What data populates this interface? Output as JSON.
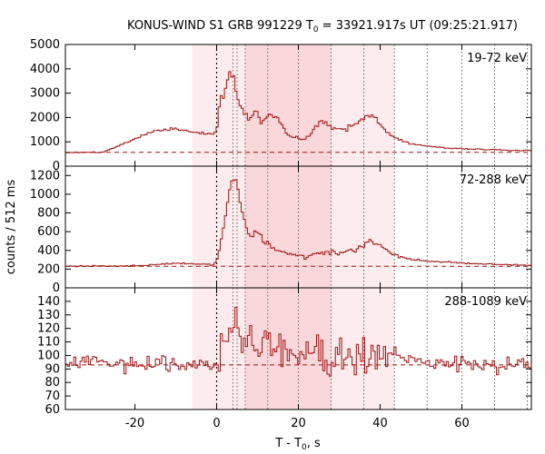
{
  "chart_data": {
    "type": "line",
    "title_main": "KONUS-WIND S1 GRB 991229 T",
    "title_sub": "0",
    "title_rest": " = 33921.917s UT (09:25:21.917)",
    "xlabel_main": "T - T",
    "xlabel_sub": "0",
    "xlabel_rest": ", s",
    "ylabel": "counts / 512 ms",
    "xlim": [
      -37,
      77
    ],
    "x_ticks": [
      -20,
      0,
      20,
      40,
      60
    ],
    "shaded_intervals": [
      {
        "from": -6,
        "to": 43.5,
        "level": 1
      },
      {
        "from": 7,
        "to": 28,
        "level": 2
      }
    ],
    "vertical_markers": [
      0,
      4,
      5,
      7,
      12.5,
      20,
      28,
      36,
      43.5,
      51.5,
      60,
      68,
      76
    ],
    "line_color": "#a01010",
    "bin_width": 0.512,
    "panels": [
      {
        "band": "19-72 keV",
        "ylim": [
          0,
          5000
        ],
        "y_ticks": [
          0,
          1000,
          2000,
          3000,
          4000,
          5000
        ],
        "background": 570,
        "profile": [
          [
            -37,
            560
          ],
          [
            -28,
            570
          ],
          [
            -23,
            900
          ],
          [
            -19,
            1200
          ],
          [
            -15,
            1450
          ],
          [
            -10,
            1550
          ],
          [
            -6,
            1400
          ],
          [
            -0.6,
            1300
          ],
          [
            0,
            1500
          ],
          [
            0.6,
            2400
          ],
          [
            1.5,
            2900
          ],
          [
            2.5,
            3200
          ],
          [
            3.5,
            4150
          ],
          [
            4.3,
            3600
          ],
          [
            5,
            2900
          ],
          [
            5.7,
            2500
          ],
          [
            6.5,
            2300
          ],
          [
            8,
            1900
          ],
          [
            9.5,
            2300
          ],
          [
            11,
            1750
          ],
          [
            13,
            2150
          ],
          [
            14.5,
            2000
          ],
          [
            16,
            1650
          ],
          [
            17.5,
            1300
          ],
          [
            19,
            1150
          ],
          [
            21,
            1100
          ],
          [
            23,
            1300
          ],
          [
            24.5,
            1700
          ],
          [
            26,
            1850
          ],
          [
            27.5,
            1650
          ],
          [
            29,
            1500
          ],
          [
            31,
            1550
          ],
          [
            33,
            1650
          ],
          [
            35,
            1800
          ],
          [
            36.5,
            2150
          ],
          [
            38,
            2050
          ],
          [
            40,
            1750
          ],
          [
            41.5,
            1450
          ],
          [
            43,
            1200
          ],
          [
            45,
            1050
          ],
          [
            48,
            900
          ],
          [
            52,
            820
          ],
          [
            56,
            750
          ],
          [
            62,
            700
          ],
          [
            68,
            680
          ],
          [
            72,
            650
          ],
          [
            77,
            640
          ]
        ]
      },
      {
        "band": "72-288 keV",
        "ylim": [
          0,
          1300
        ],
        "y_ticks": [
          0,
          200,
          400,
          600,
          800,
          1000,
          1200
        ],
        "background": 230,
        "profile": [
          [
            -37,
            230
          ],
          [
            -20,
            235
          ],
          [
            -15,
            250
          ],
          [
            -10,
            265
          ],
          [
            -6,
            255
          ],
          [
            -0.6,
            250
          ],
          [
            0,
            280
          ],
          [
            0.6,
            420
          ],
          [
            1.5,
            600
          ],
          [
            2.5,
            850
          ],
          [
            3.3,
            1050
          ],
          [
            4,
            1200
          ],
          [
            4.8,
            1150
          ],
          [
            5.5,
            1000
          ],
          [
            6.3,
            800
          ],
          [
            7,
            650
          ],
          [
            8,
            560
          ],
          [
            9.5,
            600
          ],
          [
            11,
            540
          ],
          [
            12.5,
            480
          ],
          [
            14,
            420
          ],
          [
            16,
            380
          ],
          [
            18,
            370
          ],
          [
            20,
            345
          ],
          [
            22,
            330
          ],
          [
            24,
            360
          ],
          [
            26,
            370
          ],
          [
            28,
            380
          ],
          [
            30,
            370
          ],
          [
            32,
            390
          ],
          [
            34,
            420
          ],
          [
            36,
            450
          ],
          [
            37.5,
            510
          ],
          [
            39,
            480
          ],
          [
            41,
            420
          ],
          [
            43,
            360
          ],
          [
            45,
            330
          ],
          [
            48,
            300
          ],
          [
            52,
            285
          ],
          [
            58,
            270
          ],
          [
            65,
            255
          ],
          [
            72,
            245
          ],
          [
            77,
            240
          ]
        ]
      },
      {
        "band": "288-1089 keV",
        "ylim": [
          60,
          150
        ],
        "y_ticks": [
          60,
          70,
          80,
          90,
          100,
          110,
          120,
          130,
          140
        ],
        "background": 93,
        "profile": [
          [
            -37,
            95
          ],
          [
            -34,
            94
          ],
          [
            -30,
            96
          ],
          [
            -25,
            94
          ],
          [
            -20,
            92
          ],
          [
            -15,
            93
          ],
          [
            -10,
            93
          ],
          [
            -6,
            92
          ],
          [
            -0.6,
            92
          ],
          [
            0,
            96
          ],
          [
            0.8,
            100
          ],
          [
            1.5,
            106
          ],
          [
            2.5,
            112
          ],
          [
            3.5,
            122
          ],
          [
            4.5,
            127
          ],
          [
            5.5,
            120
          ],
          [
            7,
            113
          ],
          [
            9,
            110
          ],
          [
            12,
            107
          ],
          [
            16,
            105
          ],
          [
            20,
            102
          ],
          [
            25,
            100
          ],
          [
            30,
            98
          ],
          [
            35,
            98
          ],
          [
            40,
            97
          ],
          [
            45,
            96
          ],
          [
            50,
            95
          ],
          [
            60,
            94
          ],
          [
            70,
            93
          ],
          [
            77,
            93
          ]
        ]
      }
    ]
  }
}
